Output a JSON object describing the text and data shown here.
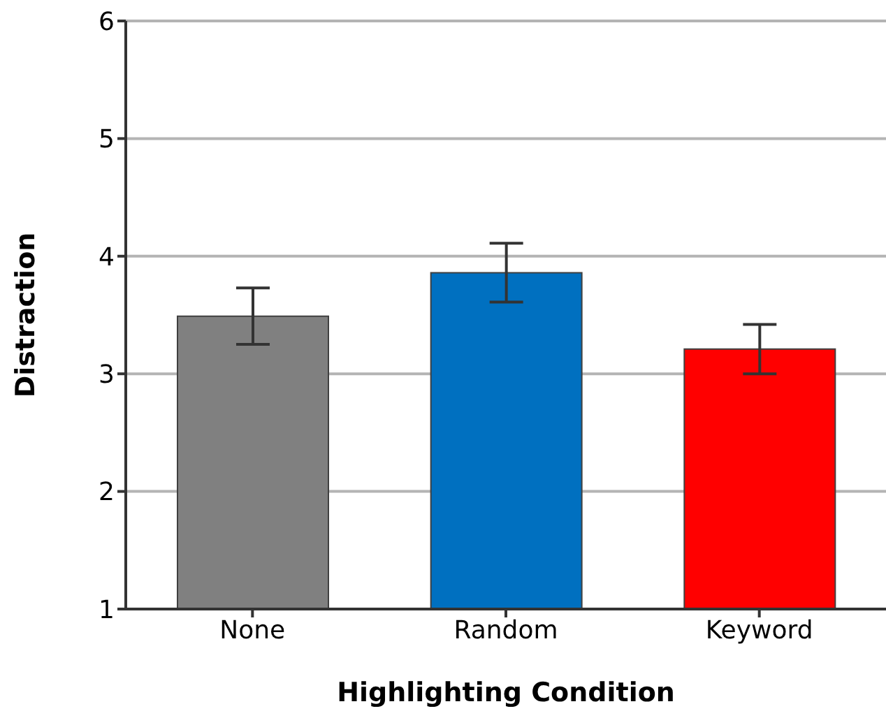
{
  "chart_data": {
    "type": "bar",
    "xlabel": "Highlighting Condition",
    "ylabel": "Distraction",
    "categories": [
      "None",
      "Random",
      "Keyword"
    ],
    "values": [
      3.49,
      3.86,
      3.21
    ],
    "colors": [
      "#808080",
      "#0070c0",
      "#ff0000"
    ],
    "errors": [
      0.24,
      0.25,
      0.21
    ],
    "ylim": [
      1,
      6
    ],
    "yticks": [
      1,
      2,
      3,
      4,
      5,
      6
    ],
    "grid": "y"
  }
}
